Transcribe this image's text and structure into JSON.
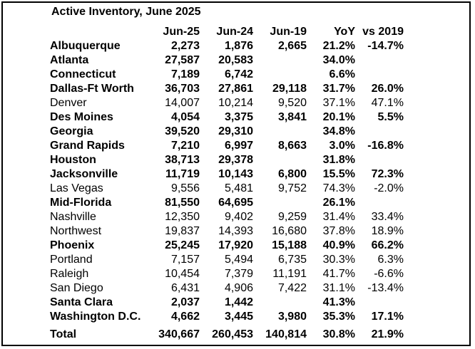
{
  "title": "Active Inventory, June 2025",
  "columns": [
    "Jun-25",
    "Jun-24",
    "Jun-19",
    "YoY",
    "vs 2019"
  ],
  "rows": [
    {
      "name": "Albuquerque",
      "bold": true,
      "jun25": "2,273",
      "jun24": "1,876",
      "jun19": "2,665",
      "yoy": "21.2%",
      "vs2019": "-14.7%"
    },
    {
      "name": "Atlanta",
      "bold": true,
      "jun25": "27,587",
      "jun24": "20,583",
      "jun19": "",
      "yoy": "34.0%",
      "vs2019": ""
    },
    {
      "name": "Connecticut",
      "bold": true,
      "jun25": "7,189",
      "jun24": "6,742",
      "jun19": "",
      "yoy": "6.6%",
      "vs2019": ""
    },
    {
      "name": "Dallas-Ft Worth",
      "bold": true,
      "jun25": "36,703",
      "jun24": "27,861",
      "jun19": "29,118",
      "yoy": "31.7%",
      "vs2019": "26.0%"
    },
    {
      "name": "Denver",
      "bold": false,
      "jun25": "14,007",
      "jun24": "10,214",
      "jun19": "9,520",
      "yoy": "37.1%",
      "vs2019": "47.1%"
    },
    {
      "name": "Des Moines",
      "bold": true,
      "jun25": "4,054",
      "jun24": "3,375",
      "jun19": "3,841",
      "yoy": "20.1%",
      "vs2019": "5.5%"
    },
    {
      "name": "Georgia",
      "bold": true,
      "jun25": "39,520",
      "jun24": "29,310",
      "jun19": "",
      "yoy": "34.8%",
      "vs2019": ""
    },
    {
      "name": "Grand Rapids",
      "bold": true,
      "jun25": "7,210",
      "jun24": "6,997",
      "jun19": "8,663",
      "yoy": "3.0%",
      "vs2019": "-16.8%"
    },
    {
      "name": "Houston",
      "bold": true,
      "jun25": "38,713",
      "jun24": "29,378",
      "jun19": "",
      "yoy": "31.8%",
      "vs2019": ""
    },
    {
      "name": "Jacksonville",
      "bold": true,
      "jun25": "11,719",
      "jun24": "10,143",
      "jun19": "6,800",
      "yoy": "15.5%",
      "vs2019": "72.3%"
    },
    {
      "name": "Las Vegas",
      "bold": false,
      "jun25": "9,556",
      "jun24": "5,481",
      "jun19": "9,752",
      "yoy": "74.3%",
      "vs2019": "-2.0%"
    },
    {
      "name": "Mid-Florida",
      "bold": true,
      "jun25": "81,550",
      "jun24": "64,695",
      "jun19": "",
      "yoy": "26.1%",
      "vs2019": ""
    },
    {
      "name": "Nashville",
      "bold": false,
      "jun25": "12,350",
      "jun24": "9,402",
      "jun19": "9,259",
      "yoy": "31.4%",
      "vs2019": "33.4%"
    },
    {
      "name": "Northwest",
      "bold": false,
      "jun25": "19,837",
      "jun24": "14,393",
      "jun19": "16,680",
      "yoy": "37.8%",
      "vs2019": "18.9%"
    },
    {
      "name": "Phoenix",
      "bold": true,
      "jun25": "25,245",
      "jun24": "17,920",
      "jun19": "15,188",
      "yoy": "40.9%",
      "vs2019": "66.2%"
    },
    {
      "name": "Portland",
      "bold": false,
      "jun25": "7,157",
      "jun24": "5,494",
      "jun19": "6,735",
      "yoy": "30.3%",
      "vs2019": "6.3%"
    },
    {
      "name": "Raleigh",
      "bold": false,
      "jun25": "10,454",
      "jun24": "7,379",
      "jun19": "11,191",
      "yoy": "41.7%",
      "vs2019": "-6.6%"
    },
    {
      "name": "San Diego",
      "bold": false,
      "jun25": "6,431",
      "jun24": "4,906",
      "jun19": "7,422",
      "yoy": "31.1%",
      "vs2019": "-13.4%"
    },
    {
      "name": "Santa Clara",
      "bold": true,
      "jun25": "2,037",
      "jun24": "1,442",
      "jun19": "",
      "yoy": "41.3%",
      "vs2019": ""
    },
    {
      "name": "Washington D.C.",
      "bold": true,
      "jun25": "4,662",
      "jun24": "3,445",
      "jun19": "3,980",
      "yoy": "35.3%",
      "vs2019": "17.1%"
    }
  ],
  "total": {
    "name": "Total",
    "jun25": "340,667",
    "jun24": "260,453",
    "jun19": "140,814",
    "yoy": "30.8%",
    "vs2019": "21.9%"
  }
}
